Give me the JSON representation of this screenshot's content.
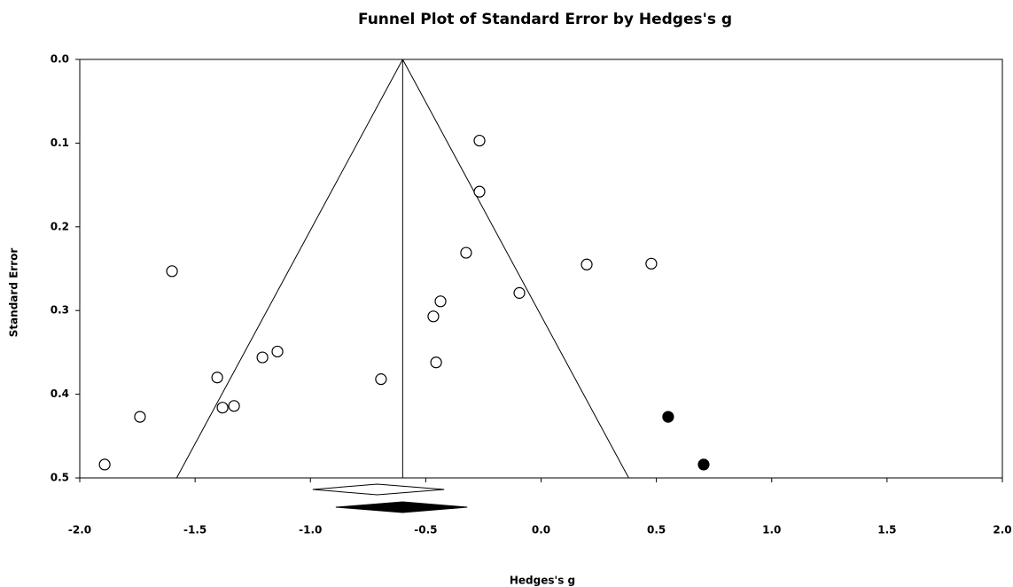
{
  "chart_data": {
    "type": "scatter",
    "title": "Funnel Plot of Standard Error by Hedges's g",
    "x_label": "Hedges's g",
    "y_label": "Standard Error",
    "xlim": [
      -2,
      2
    ],
    "ylim": [
      0,
      0.5
    ],
    "y_inverted": true,
    "xticks": [
      {
        "value": -2,
        "label": "-2.0"
      },
      -1.5,
      {
        "value": -1,
        "label": "-1.0"
      },
      -0.5,
      {
        "value": 0,
        "label": "0.0"
      },
      0.5,
      {
        "value": 1,
        "label": "1.0"
      },
      1.5,
      {
        "value": 2,
        "label": "2.0"
      }
    ],
    "yticks": [
      {
        "value": 0,
        "label": "0.0"
      },
      0.1,
      0.2,
      0.3,
      0.4,
      0.5
    ],
    "series": [
      {
        "color": "#ffffff",
        "x": [
          -0.267,
          -0.267,
          -0.325,
          0.198,
          0.478,
          -0.094,
          -0.436,
          -0.467,
          -0.455,
          -0.694,
          -1.6,
          -1.143,
          -1.208,
          -1.404,
          -1.381,
          -1.331,
          -1.739,
          -1.892
        ],
        "values": [
          0.097,
          0.158,
          0.231,
          0.245,
          0.244,
          0.279,
          0.289,
          0.307,
          0.362,
          0.382,
          0.253,
          0.349,
          0.356,
          0.38,
          0.416,
          0.414,
          0.427,
          0.484
        ]
      },
      {
        "color": "#000000",
        "x": [
          0.551,
          0.705
        ],
        "values": [
          0.427,
          0.484
        ]
      }
    ],
    "funnel": {
      "center": -0.6,
      "bottom_lower": -1.58,
      "bottom_upper": 0.38
    },
    "diamonds": [
      {
        "center": -0.71,
        "lower": -0.99,
        "upper": -0.42,
        "color": "#ffffff"
      },
      {
        "center": -0.6,
        "lower": -0.89,
        "upper": -0.32,
        "color": "#000000"
      }
    ]
  }
}
